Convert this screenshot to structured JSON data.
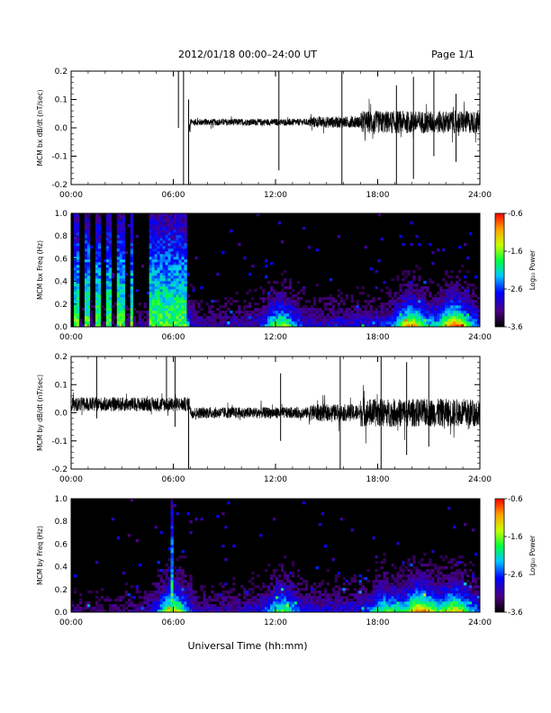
{
  "header": {
    "title": "2012/01/18  00:00–24:00 UT",
    "page": "Page 1/1"
  },
  "xlabel": "Universal Time (hh:mm)",
  "chart_data": [
    {
      "type": "line",
      "ylabel": "MCM bx dB/dt (nT/sec)",
      "xlim": [
        0,
        24
      ],
      "ylim": [
        -0.2,
        0.2
      ],
      "x_ticks": [
        "00:00",
        "06:00",
        "12:00",
        "18:00",
        "24:00"
      ],
      "y_ticks": [
        "0.2",
        "0.1",
        "0.0",
        "-0.1",
        "-0.2"
      ],
      "data_gap": [
        0,
        6.9
      ],
      "segments": [
        [
          6.9,
          7.0
        ],
        [
          7.0,
          14.0
        ],
        [
          14.0,
          17.0
        ],
        [
          17.0,
          24.0
        ]
      ],
      "amplitude": [
        0.02,
        0.012,
        0.02,
        0.04
      ],
      "offset": [
        0.0,
        0.02,
        0.02,
        0.02
      ],
      "spikes": [
        [
          6.3,
          0.2,
          0.0
        ],
        [
          6.6,
          0.2,
          -0.2
        ],
        [
          6.9,
          -0.2,
          0.1
        ],
        [
          12.2,
          0.2,
          -0.15
        ],
        [
          15.9,
          0.2,
          -0.2
        ],
        [
          19.1,
          0.15,
          -0.2
        ],
        [
          20.1,
          0.18,
          -0.18
        ],
        [
          21.3,
          0.2,
          -0.1
        ],
        [
          22.6,
          0.12,
          -0.12
        ]
      ]
    },
    {
      "type": "heatmap",
      "ylabel": "MCM bx Freq (Hz)",
      "xlim": [
        0,
        24
      ],
      "ylim": [
        0,
        1.0
      ],
      "x_ticks": [
        "00:00",
        "06:00",
        "12:00",
        "18:00",
        "24:00"
      ],
      "y_ticks": [
        "1.0",
        "0.8",
        "0.6",
        "0.4",
        "0.2",
        "0.0"
      ],
      "colorbar": {
        "label": "Log₁₀ Power",
        "min": -3.6,
        "max": -0.6,
        "ticks": [
          "-0.6",
          "-1.6",
          "-2.6",
          "-3.6"
        ]
      },
      "strong_bands": [
        [
          0.2,
          0.5
        ],
        [
          0.8,
          1.1
        ],
        [
          1.4,
          1.7
        ],
        [
          2.1,
          2.3
        ],
        [
          2.7,
          3.2
        ],
        [
          3.4,
          3.6
        ],
        [
          4.6,
          6.8
        ]
      ],
      "activity_peaks": [
        [
          6.0,
          1.0
        ],
        [
          12.3,
          0.7
        ],
        [
          20.0,
          0.8
        ],
        [
          22.5,
          0.9
        ]
      ]
    },
    {
      "type": "line",
      "ylabel": "MCM by dB/dt (nT/sec)",
      "xlim": [
        0,
        24
      ],
      "ylim": [
        -0.2,
        0.2
      ],
      "x_ticks": [
        "00:00",
        "06:00",
        "12:00",
        "18:00",
        "24:00"
      ],
      "y_ticks": [
        "0.2",
        "0.1",
        "0.0",
        "-0.1",
        "-0.2"
      ],
      "segments": [
        [
          0,
          7.0
        ],
        [
          7.0,
          14.0
        ],
        [
          14.0,
          17.0
        ],
        [
          17.0,
          24.0
        ]
      ],
      "amplitude": [
        0.025,
        0.02,
        0.03,
        0.05
      ],
      "offset": [
        0.03,
        0.0,
        0.0,
        0.0
      ],
      "spikes": [
        [
          1.5,
          0.2,
          -0.02
        ],
        [
          5.6,
          0.2,
          0.03
        ],
        [
          6.1,
          0.2,
          -0.05
        ],
        [
          6.9,
          -0.2,
          0.05
        ],
        [
          12.3,
          0.14,
          -0.1
        ],
        [
          15.8,
          0.2,
          -0.2
        ],
        [
          18.2,
          0.2,
          -0.2
        ],
        [
          19.7,
          0.18,
          -0.15
        ],
        [
          21.0,
          0.2,
          -0.12
        ]
      ]
    },
    {
      "type": "heatmap",
      "ylabel": "MCM by Freq (Hz)",
      "xlim": [
        0,
        24
      ],
      "ylim": [
        0,
        1.0
      ],
      "x_ticks": [
        "00:00",
        "06:00",
        "12:00",
        "18:00",
        "24:00"
      ],
      "y_ticks": [
        "1.0",
        "0.8",
        "0.6",
        "0.4",
        "0.2",
        "0.0"
      ],
      "colorbar": {
        "label": "Log₁₀ Power",
        "min": -3.6,
        "max": -0.6,
        "ticks": [
          "-0.6",
          "-1.6",
          "-2.6",
          "-3.6"
        ]
      },
      "strong_bands": [
        [
          5.5,
          5.6
        ],
        [
          5.9,
          6.0
        ],
        [
          6.1,
          6.2
        ],
        [
          12.4,
          12.5
        ]
      ],
      "activity_peaks": [
        [
          6.0,
          0.9
        ],
        [
          12.4,
          0.6
        ],
        [
          18.5,
          0.5
        ],
        [
          20.5,
          0.9
        ],
        [
          22.5,
          0.7
        ]
      ]
    }
  ]
}
